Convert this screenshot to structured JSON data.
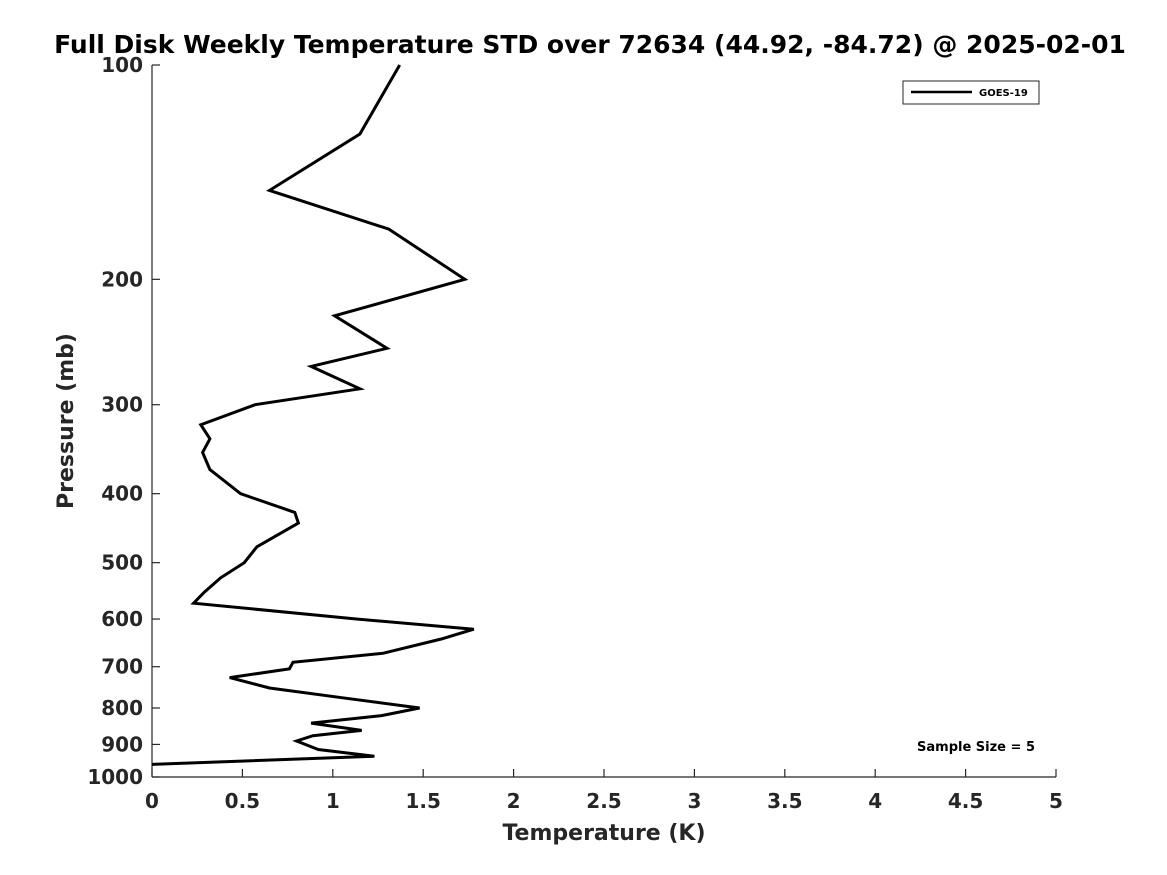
{
  "chart_data": {
    "type": "line",
    "title": "Full Disk Weekly Temperature STD over 72634 (44.92, -84.72) @ 2025-02-01",
    "xlabel": "Temperature (K)",
    "ylabel": "Pressure (mb)",
    "xlim": [
      0,
      5
    ],
    "ylim": [
      1000,
      100
    ],
    "y_scale": "log",
    "y_direction": "reversed",
    "x_ticks": [
      "0",
      "0.5",
      "1",
      "1.5",
      "2",
      "2.5",
      "3",
      "3.5",
      "4",
      "4.5",
      "5"
    ],
    "y_ticks": [
      "100",
      "200",
      "300",
      "400",
      "500",
      "600",
      "700",
      "800",
      "900",
      "1000"
    ],
    "grid": false,
    "legend_position": "top-right",
    "annotation": "Sample Size = 5",
    "series": [
      {
        "name": "GOES-19",
        "color": "#000000",
        "points": [
          {
            "x": 1.37,
            "y": 100
          },
          {
            "x": 1.15,
            "y": 125
          },
          {
            "x": 0.65,
            "y": 150
          },
          {
            "x": 1.31,
            "y": 170
          },
          {
            "x": 1.73,
            "y": 200
          },
          {
            "x": 1.01,
            "y": 225
          },
          {
            "x": 1.3,
            "y": 250
          },
          {
            "x": 0.88,
            "y": 265
          },
          {
            "x": 1.15,
            "y": 285
          },
          {
            "x": 0.57,
            "y": 300
          },
          {
            "x": 0.27,
            "y": 320
          },
          {
            "x": 0.32,
            "y": 335
          },
          {
            "x": 0.28,
            "y": 350
          },
          {
            "x": 0.32,
            "y": 370
          },
          {
            "x": 0.49,
            "y": 400
          },
          {
            "x": 0.79,
            "y": 425
          },
          {
            "x": 0.81,
            "y": 440
          },
          {
            "x": 0.58,
            "y": 475
          },
          {
            "x": 0.51,
            "y": 500
          },
          {
            "x": 0.38,
            "y": 525
          },
          {
            "x": 0.29,
            "y": 550
          },
          {
            "x": 0.23,
            "y": 570
          },
          {
            "x": 1.13,
            "y": 600
          },
          {
            "x": 1.78,
            "y": 620
          },
          {
            "x": 1.6,
            "y": 640
          },
          {
            "x": 1.28,
            "y": 670
          },
          {
            "x": 0.78,
            "y": 690
          },
          {
            "x": 0.76,
            "y": 705
          },
          {
            "x": 0.43,
            "y": 725
          },
          {
            "x": 0.65,
            "y": 750
          },
          {
            "x": 1.07,
            "y": 775
          },
          {
            "x": 1.48,
            "y": 800
          },
          {
            "x": 1.27,
            "y": 820
          },
          {
            "x": 0.88,
            "y": 840
          },
          {
            "x": 1.16,
            "y": 860
          },
          {
            "x": 0.89,
            "y": 875
          },
          {
            "x": 0.8,
            "y": 890
          },
          {
            "x": 0.92,
            "y": 915
          },
          {
            "x": 1.23,
            "y": 935
          },
          {
            "x": 0.0,
            "y": 960
          }
        ]
      }
    ]
  }
}
